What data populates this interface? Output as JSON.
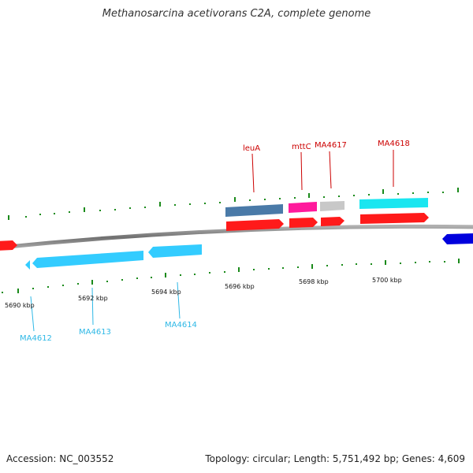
{
  "title": "Methanosarcina acetivorans C2A, complete genome",
  "footer": {
    "accession": "Accession: NC_003552",
    "summary": "Topology: circular; Length: 5,751,492 bp; Genes: 4,609"
  },
  "axis_labels": [
    "5690 kbp",
    "5692 kbp",
    "5694 kbp",
    "5696 kbp",
    "5698 kbp",
    "5700 kbp"
  ],
  "genes_labeled_top": [
    {
      "name": "leuA",
      "color": "#cc0000"
    },
    {
      "name": "mttC",
      "color": "#cc0000"
    },
    {
      "name": "MA4617",
      "color": "#cc0000"
    },
    {
      "name": "MA4618",
      "color": "#cc0000"
    }
  ],
  "genes_labeled_bottom": [
    {
      "name": "MA4612",
      "color": "#2eb8e6"
    },
    {
      "name": "MA4613",
      "color": "#2eb8e6"
    },
    {
      "name": "MA4614",
      "color": "#2eb8e6"
    }
  ],
  "colors": {
    "cds": "#ff1a1a",
    "forward_gene_blue": "#4a7aa8",
    "forward_gene_magenta": "#ff1a9c",
    "forward_gene_gray": "#c8c8c8",
    "forward_gene_cyan": "#1ae6f0",
    "reverse_gene": "#33ccff",
    "reverse_gene_far": "#0000dd",
    "tick": "#1a8a1a",
    "backbone": "#8c8c8c"
  }
}
